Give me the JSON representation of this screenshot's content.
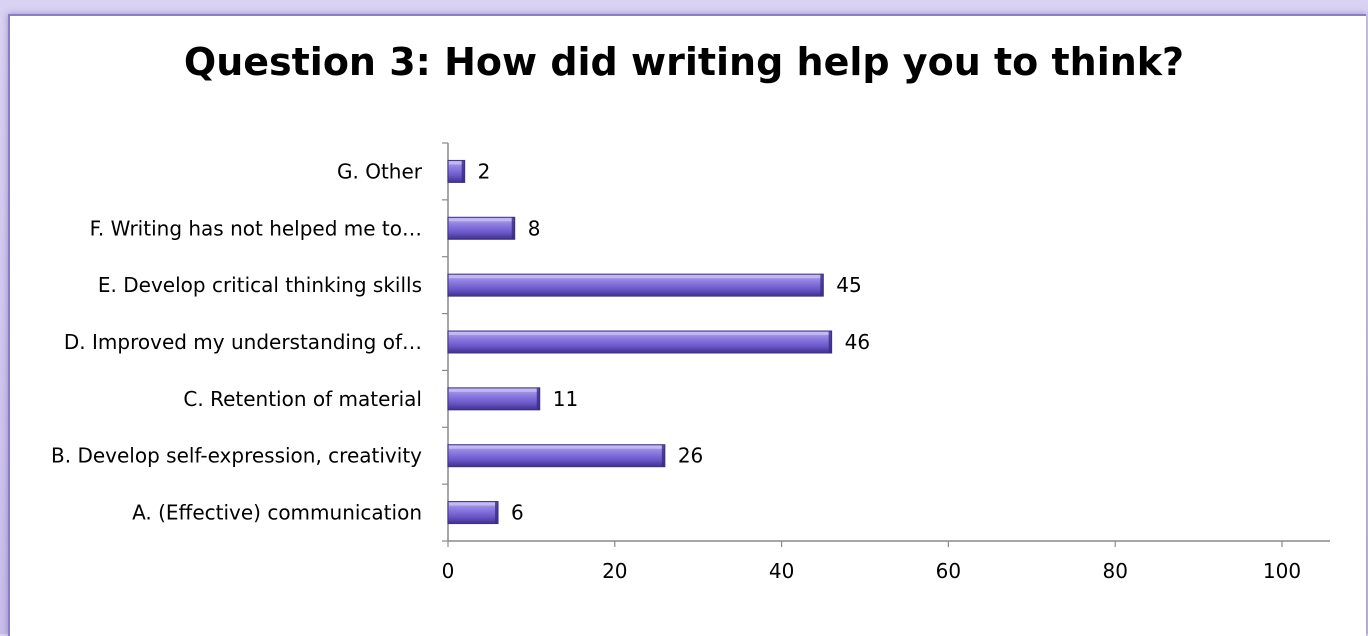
{
  "chart_data": {
    "type": "bar",
    "orientation": "horizontal",
    "title": "Question 3:  How did writing help you to think?",
    "categories": [
      "A.  (Effective) communication",
      "B.  Develop self-expression, creativity",
      "C. Retention of material",
      "D.  Improved my understanding of…",
      "E.  Develop critical thinking skills",
      "F.  Writing has not helped me to…",
      "G.  Other"
    ],
    "values": [
      6,
      26,
      11,
      46,
      45,
      8,
      2
    ],
    "xlim": [
      0,
      100
    ],
    "xticks": [
      "0",
      "20",
      "40",
      "60",
      "80",
      "100"
    ],
    "grid": false,
    "legend": "none",
    "colors": {
      "bar": "#7b68d0",
      "bar_dark": "#4a3a9a",
      "bar_light": "#b3a7ec"
    }
  }
}
